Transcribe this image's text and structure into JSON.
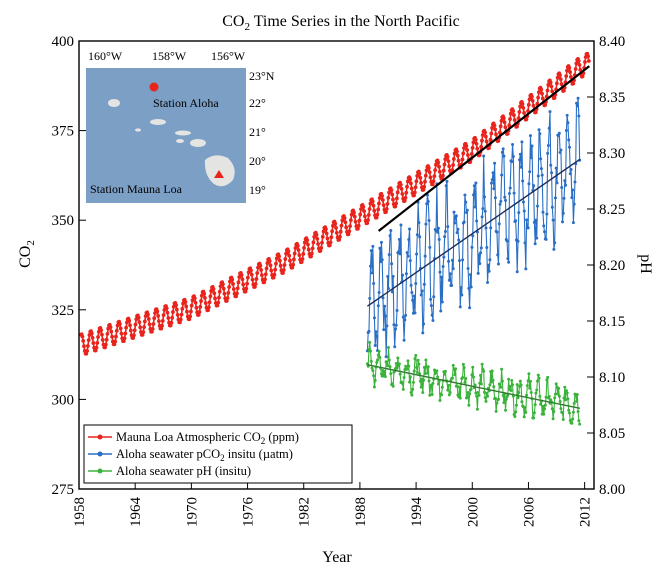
{
  "chart_data": {
    "type": "line",
    "title_main": "CO",
    "title_sub": "2",
    "title_rest": " Time Series in the North Pacific",
    "xlabel": "Year",
    "ylabel_left_main": "CO",
    "ylabel_left_sub": "2",
    "ylabel_right": "pH",
    "xlim": [
      1958,
      2013
    ],
    "ylim_left": [
      275,
      400
    ],
    "ylim_right": [
      8.0,
      8.4
    ],
    "x_ticks": [
      "1958",
      "1964",
      "1970",
      "1976",
      "1982",
      "1988",
      "1994",
      "2000",
      "2006",
      "2012"
    ],
    "y_ticks_left": [
      "275",
      "300",
      "325",
      "350",
      "375",
      "400"
    ],
    "y_ticks_right": [
      "8.00",
      "8.05",
      "8.10",
      "8.15",
      "8.20",
      "8.25",
      "8.30",
      "8.35",
      "8.40"
    ],
    "grid": false,
    "legend_position": "bottom-left",
    "series": [
      {
        "name_main": "Mauna Loa Atmospheric CO",
        "name_sub": "2",
        "name_rest": " (ppm)",
        "color": "#e8241c",
        "axis": "left",
        "x_start": 1958.2,
        "x_end": 2012.5,
        "trend": {
          "x": [
            1958,
            1970,
            1980,
            1990,
            2000,
            2012
          ],
          "y": [
            315,
            325.5,
            338.5,
            354,
            369.5,
            393.5
          ]
        },
        "seasonal_amplitude": 3.0
      },
      {
        "name_main": "Aloha seawater pCO",
        "name_sub": "2",
        "name_rest": " insitu (µatm)",
        "color": "#2a6fc6",
        "axis": "left",
        "x_start": 1988.8,
        "x_end": 2011.5,
        "trend": {
          "x": [
            1988.8,
            2011.5
          ],
          "y": [
            327,
            367
          ]
        },
        "seasonal_amplitude": 14
      },
      {
        "name_main": "Aloha seawater pH (insitu)",
        "name_sub": "",
        "name_rest": "",
        "color": "#3bb33b",
        "axis": "right",
        "x_start": 1988.8,
        "x_end": 2011.5,
        "trend": {
          "x": [
            1988.8,
            2011.5
          ],
          "y": [
            8.111,
            8.074
          ]
        },
        "seasonal_amplitude": 0.012
      }
    ],
    "trend_lines": [
      {
        "axis": "left",
        "x": [
          1990,
          2012.5
        ],
        "y": [
          347,
          393
        ],
        "color": "#000000"
      },
      {
        "axis": "left",
        "x": [
          1988.8,
          2011.5
        ],
        "y": [
          326,
          367
        ],
        "color": "#1a2a5a"
      },
      {
        "axis": "right",
        "x": [
          1988.8,
          2011.5
        ],
        "y": [
          8.111,
          8.072
        ],
        "color": "#2e7a2e"
      }
    ]
  },
  "inset_map": {
    "lon_labels": [
      "160°W",
      "158°W",
      "156°W"
    ],
    "lat_labels": [
      "23°N",
      "22°",
      "21°",
      "20°",
      "19°"
    ],
    "station_aloha_label": "Station Aloha",
    "station_mauna_loa_label": "Station Mauna Loa",
    "sea_color": "#7c9fc6",
    "land_color": "#e4e4e2",
    "aloha_marker_color": "#e8241c",
    "mauna_loa_marker_color": "#e8241c"
  }
}
